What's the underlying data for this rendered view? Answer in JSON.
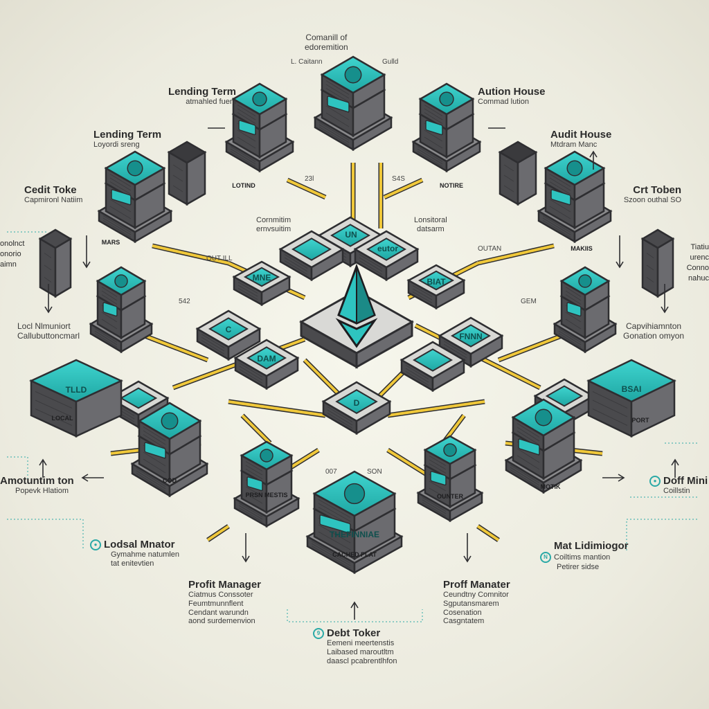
{
  "colors": {
    "teal": "#2ec4c0",
    "tealDark": "#168f8c",
    "slate": "#4a4a4d",
    "slateDark": "#2e2e31",
    "slateLight": "#6b6b6f",
    "wire": "#f0c83a",
    "bg": "#f2f1e6"
  },
  "center_icon": "ethereum-diamond-icon",
  "labels": {
    "top": {
      "title": "Comanill of",
      "sub": "edoremition"
    },
    "top_left_tag": "L. Caitann",
    "top_right_tag": "Gulld",
    "lending_term_1": {
      "title": "Lending Term",
      "sub": "atmahled fuem"
    },
    "lending_term_2": {
      "title": "Lending Term",
      "sub": "Loyordi sreng"
    },
    "auction_house": {
      "title": "Aution House",
      "sub": "Commad lution"
    },
    "audit_house": {
      "title": "Audit House",
      "sub": "Mtdram Manc"
    },
    "credit_token_left": {
      "title": "Cedit Toke",
      "sub": "Capmironl Natiim"
    },
    "credit_token_right": {
      "title": "Crt Toben",
      "sub": "Szoon outhal SO"
    },
    "left_notes": [
      "onolnct",
      "onorio",
      "aimn"
    ],
    "right_notes": [
      "Tiatiu",
      "urenc",
      "Conno",
      "nahuc"
    ],
    "center_left_note": {
      "title": "Cornmitim",
      "sub": "ernvsuitim"
    },
    "center_right_note": {
      "title": "Lonsitoral",
      "sub": "datsarm"
    },
    "num_left_top": "23l",
    "num_right_top": "S4S",
    "num_left_mid": "542",
    "num_right_mid": "GEM",
    "oui_left": "OUT ILL",
    "oui_right": "OUTAN",
    "local_mini": {
      "title": "Locl Nlmuniort",
      "sub": "Callubuttoncmarl"
    },
    "captain_right": {
      "title": "Capvihiamnton",
      "sub": "Gonation omyon"
    },
    "amortization": {
      "title": "Amotuntim ton",
      "sub": "Popevk Hlatiom"
    },
    "doff": {
      "title": "Doff Mini",
      "sub": "Coillstin"
    },
    "lodsal": {
      "title": "Lodsal Mnator",
      "sub1": "Gymahme natumlen",
      "sub2": "tat enitevtien"
    },
    "mat": {
      "title": "Mat Lidimiogor",
      "sub1": "Coiltims mantion",
      "sub2": "Petirer sidse"
    },
    "profit_left": {
      "title": "Profit Manager",
      "lines": [
        "Ciatmus Conssoter",
        "Feumtmunnflent",
        "Cendant warundn",
        "aond surdemenvion"
      ]
    },
    "profit_right": {
      "title": "Proff Manater",
      "lines": [
        "Ceundtny Comnitor",
        "Sgputansmarem",
        "Cosenation",
        "Casgntatem"
      ]
    },
    "debt": {
      "title": "Debt Toker",
      "lines": [
        "Eemeni meertenstis",
        "Laibased maroutltm",
        "daascl pcabrentlhfon"
      ]
    },
    "mid_bottom": [
      "007",
      "SON"
    ],
    "tile_texts": {
      "top_a": "UN",
      "top_b": "eutor",
      "left_a": "MNE",
      "right_a": "BIAT",
      "core_l": "C",
      "core_r": "DAM",
      "core_c": "D",
      "right_b": "FNNN",
      "screen_l": "TLLD",
      "screen_r": "BSAI",
      "bottom_screen": "THEFINNIAE",
      "bottom_plate": "CACHED PLAT",
      "sign_a": "MARS",
      "sign_b": "LOTIND",
      "sign_c": "NOTIRE",
      "sign_d": "MAKIIS",
      "sign_e": "MOTIK",
      "sign_f": "OUNTER",
      "sign_g": "COD",
      "sign_h": "PRSN MESTIS",
      "sign_i": "LOCAL",
      "sign_j": "PORT"
    }
  }
}
